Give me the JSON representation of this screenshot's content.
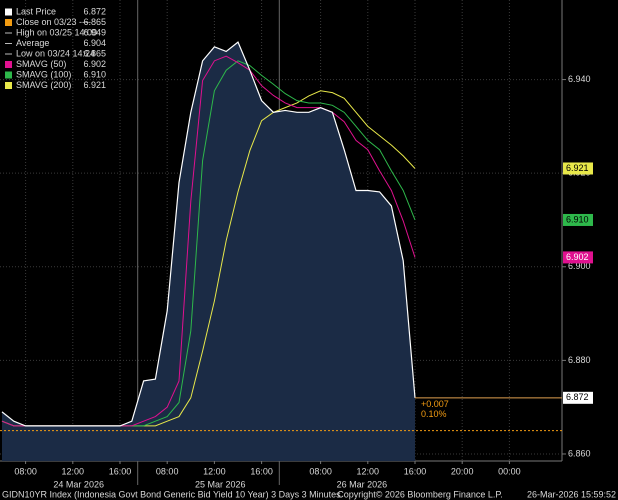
{
  "chart_data": {
    "type": "line",
    "categories": [
      null,
      null,
      "08:00",
      null,
      null,
      null,
      "12:00",
      null,
      null,
      null,
      "16:00",
      null,
      null,
      null,
      "08:00",
      null,
      null,
      null,
      "12:00",
      null,
      null,
      null,
      "16:00",
      null,
      null,
      null,
      null,
      "08:00",
      null,
      null,
      null,
      "12:00",
      null,
      null,
      null,
      "16:00",
      null,
      null,
      null,
      "20:00",
      null,
      null,
      null,
      "00:00"
    ],
    "day_labels": [
      "24 Mar 2026",
      "25 Mar 2026",
      "26 Mar 2026"
    ],
    "series": [
      {
        "name": "Last Price",
        "color": "#ffffff",
        "fill": "#1b2b45",
        "legend_value": 6.872,
        "values": [
          6.869,
          6.867,
          6.866,
          6.866,
          6.866,
          6.866,
          6.866,
          6.866,
          6.866,
          6.866,
          6.866,
          6.867,
          6.8756,
          6.876,
          6.8906,
          6.918,
          6.933,
          6.944,
          6.947,
          6.946,
          6.948,
          6.942,
          6.9355,
          6.933,
          6.9334,
          6.933,
          6.933,
          6.934,
          6.933,
          6.925,
          6.9163,
          6.9163,
          6.916,
          6.913,
          6.9013,
          6.872,
          null,
          null,
          null,
          null,
          null,
          null,
          null,
          null
        ]
      },
      {
        "name": "SMAVG (50)",
        "color": "#e0118f",
        "legend_value": 6.902,
        "values": [
          6.867,
          6.866,
          6.866,
          6.866,
          6.866,
          6.866,
          6.866,
          6.866,
          6.866,
          6.866,
          6.866,
          6.866,
          6.867,
          6.868,
          6.87,
          6.8756,
          6.914,
          6.9398,
          6.944,
          6.945,
          6.9436,
          6.942,
          6.9387,
          6.9366,
          6.935,
          6.934,
          6.934,
          6.934,
          6.933,
          6.931,
          6.927,
          6.925,
          6.9205,
          6.9163,
          6.9098,
          6.902,
          null,
          null,
          null,
          null,
          null,
          null,
          null,
          null
        ]
      },
      {
        "name": "SMAVG (100)",
        "color": "#2eb84b",
        "legend_value": {
          "value": 6.91,
          "label": "6.910"
        },
        "values": [
          6.867,
          6.866,
          6.866,
          6.866,
          6.866,
          6.866,
          6.866,
          6.866,
          6.866,
          6.866,
          6.866,
          6.866,
          6.866,
          6.867,
          6.868,
          6.871,
          6.8863,
          6.9227,
          6.9376,
          6.942,
          6.944,
          6.943,
          6.9409,
          6.939,
          6.937,
          6.9355,
          6.935,
          6.935,
          6.9345,
          6.933,
          6.93,
          6.927,
          6.925,
          6.9205,
          6.9163,
          6.91,
          null,
          null,
          null,
          null,
          null,
          null,
          null,
          null
        ]
      },
      {
        "name": "SMAVG (200)",
        "color": "#e8e84a",
        "legend_value": 6.921,
        "values": [
          6.867,
          6.866,
          6.866,
          6.866,
          6.866,
          6.866,
          6.866,
          6.866,
          6.866,
          6.866,
          6.866,
          6.866,
          6.866,
          6.866,
          6.867,
          6.868,
          6.872,
          6.882,
          6.8927,
          6.9056,
          6.916,
          6.9248,
          6.9312,
          6.933,
          6.934,
          6.935,
          6.9365,
          6.9376,
          6.9372,
          6.936,
          6.933,
          6.93,
          6.928,
          6.926,
          6.9237,
          6.921,
          null,
          null,
          null,
          null,
          null,
          null,
          null,
          null
        ]
      }
    ],
    "legend_extra": [
      {
        "label": "Close on 03/23 ----",
        "value": 6.865,
        "color": "#f39c12"
      },
      {
        "label": "High on 03/25 14:00",
        "value": 6.949
      },
      {
        "label": "Average",
        "value": 6.904
      },
      {
        "label": "Low on 03/24 14:24",
        "value": 6.865
      }
    ],
    "change": "+0.007",
    "change_pct": "0.10%",
    "ylim": [
      6.8585,
      6.957
    ],
    "yticks": [
      {
        "value": 6.86,
        "label": "6.860"
      },
      {
        "value": 6.88,
        "label": "6.880"
      },
      {
        "value": 6.9,
        "label": "6.900"
      },
      {
        "value": 6.92,
        "label": "6.920"
      },
      {
        "value": 6.94,
        "label": "6.940"
      }
    ],
    "grid": true,
    "footer": {
      "security": "GIDN10YR Index (Indonesia Govt Bond Generic Bid Yield 10 Year) 3 Days 3 Minutes",
      "copyright": "Copyright© 2026 Bloomberg Finance L.P.",
      "timestamp": "26-Mar-2026 15:59:52"
    }
  }
}
